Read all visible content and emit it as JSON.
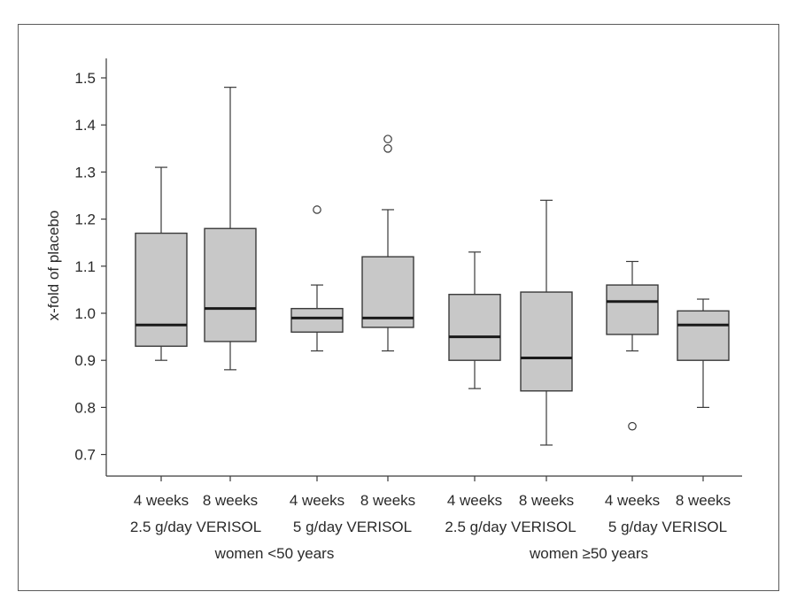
{
  "chart_data": {
    "type": "box",
    "ylabel": "x-fold of placebo",
    "ylim": [
      0.65,
      1.54
    ],
    "yticks": [
      "0.7",
      "0.8",
      "0.9",
      "1.0",
      "1.1",
      "1.2",
      "1.3",
      "1.4",
      "1.5"
    ],
    "ytick_values": [
      0.7,
      0.8,
      0.9,
      1.0,
      1.1,
      1.2,
      1.3,
      1.4,
      1.5
    ],
    "categories": [
      "4 weeks",
      "8 weeks",
      "4 weeks",
      "8 weeks",
      "4 weeks",
      "8 weeks",
      "4 weeks",
      "8 weeks"
    ],
    "dose_labels": [
      "2.5 g/day VERISOL",
      "5 g/day VERISOL",
      "2.5 g/day VERISOL",
      "5 g/day VERISOL"
    ],
    "group_labels": [
      "women <50 years",
      "women ≥50 years"
    ],
    "boxes": [
      {
        "whisker_low": 0.9,
        "q1": 0.93,
        "median": 0.975,
        "q3": 1.17,
        "whisker_high": 1.31,
        "outliers": []
      },
      {
        "whisker_low": 0.88,
        "q1": 0.94,
        "median": 1.01,
        "q3": 1.18,
        "whisker_high": 1.48,
        "outliers": []
      },
      {
        "whisker_low": 0.92,
        "q1": 0.96,
        "median": 0.99,
        "q3": 1.01,
        "whisker_high": 1.06,
        "outliers": [
          1.22
        ]
      },
      {
        "whisker_low": 0.92,
        "q1": 0.97,
        "median": 0.99,
        "q3": 1.12,
        "whisker_high": 1.22,
        "outliers": [
          1.35,
          1.37
        ]
      },
      {
        "whisker_low": 0.84,
        "q1": 0.9,
        "median": 0.95,
        "q3": 1.04,
        "whisker_high": 1.13,
        "outliers": []
      },
      {
        "whisker_low": 0.72,
        "q1": 0.835,
        "median": 0.905,
        "q3": 1.045,
        "whisker_high": 1.24,
        "outliers": []
      },
      {
        "whisker_low": 0.92,
        "q1": 0.955,
        "median": 1.025,
        "q3": 1.06,
        "whisker_high": 1.11,
        "outliers": [
          0.76
        ]
      },
      {
        "whisker_low": 0.8,
        "q1": 0.9,
        "median": 0.975,
        "q3": 1.005,
        "whisker_high": 1.03,
        "outliers": []
      }
    ],
    "colors": {
      "box_fill": "#c8c8c8",
      "stroke": "#3a3a3a",
      "median": "#1a1a1a"
    },
    "grid": false,
    "legend": "none"
  }
}
